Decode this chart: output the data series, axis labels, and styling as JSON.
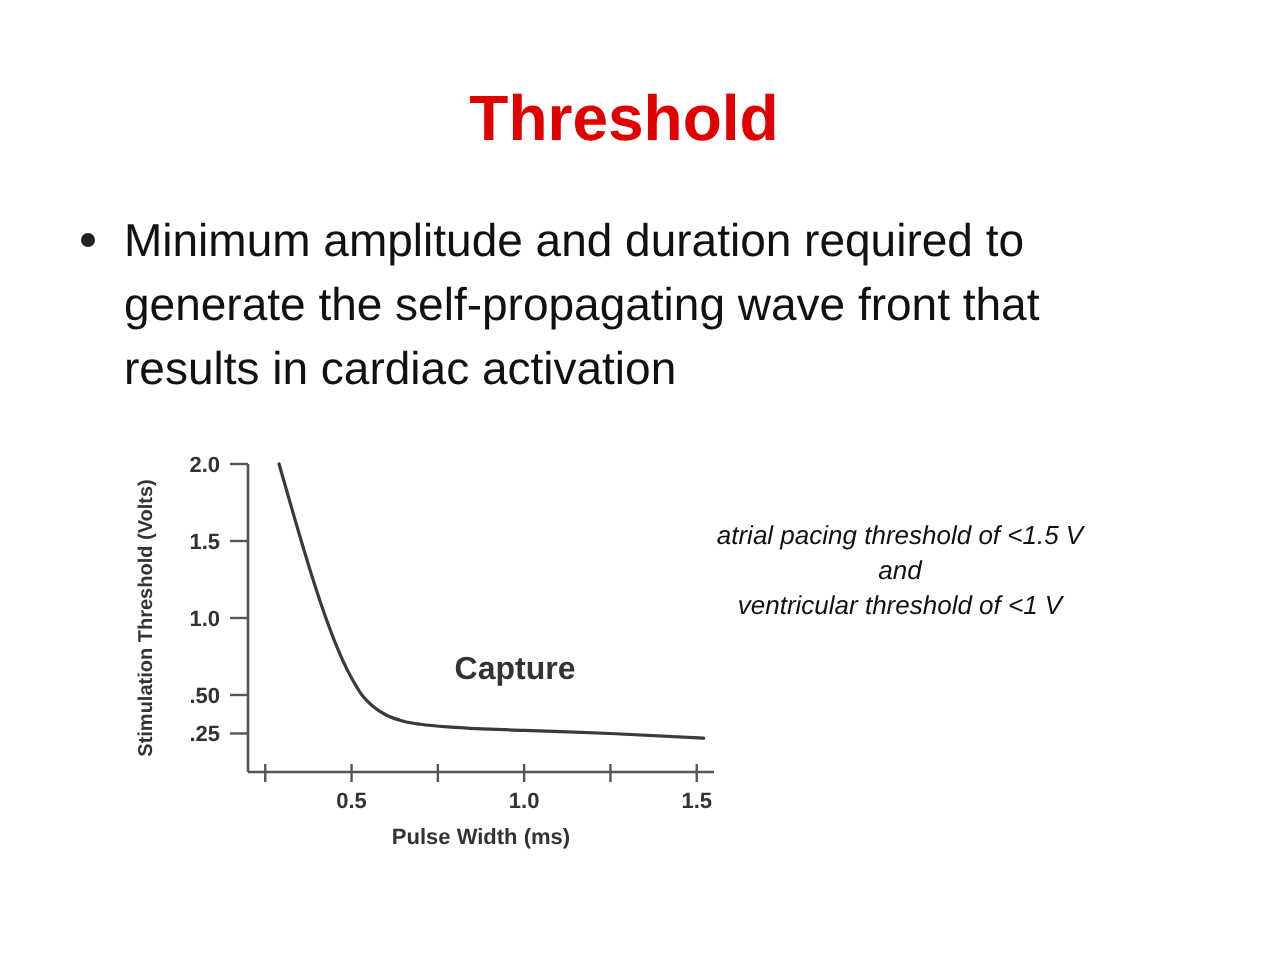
{
  "chart_data": {
    "type": "line",
    "title": "Threshold",
    "subtitle": "Minimum amplitude and duration required to generate the self-propagating wave front that results in cardiac activation",
    "xlabel": "Pulse Width (ms)",
    "ylabel": "Stimulation Threshold (Volts)",
    "x": [
      0.29,
      0.5,
      0.53,
      0.56,
      0.6,
      0.65,
      0.7,
      0.8,
      1.0,
      1.25,
      1.52
    ],
    "series": [
      {
        "color": "#3a3a3a",
        "values": [
          2.0,
          0.61,
          0.5,
          0.43,
          0.37,
          0.33,
          0.31,
          0.29,
          0.27,
          0.25,
          0.22
        ]
      }
    ],
    "xlim": [
      0.2,
      1.55
    ],
    "ylim": [
      0,
      2
    ],
    "xticks": [
      {
        "value": 0.25,
        "label": null
      },
      0.5,
      {
        "value": 0.75,
        "label": null
      },
      {
        "value": 1,
        "label": "1.0"
      },
      {
        "value": 1.25,
        "label": null
      },
      1.5
    ],
    "yticks": [
      {
        "value": 0.25,
        "label": ".25"
      },
      {
        "value": 0.5,
        "label": ".50"
      },
      {
        "value": 1,
        "label": "1.0"
      },
      1.5,
      {
        "value": 2,
        "label": "2.0"
      }
    ],
    "annotations": [
      "Capture",
      "atrial pacing threshold of <1.5 V\nand\nventricular threshold of <1 V"
    ]
  }
}
